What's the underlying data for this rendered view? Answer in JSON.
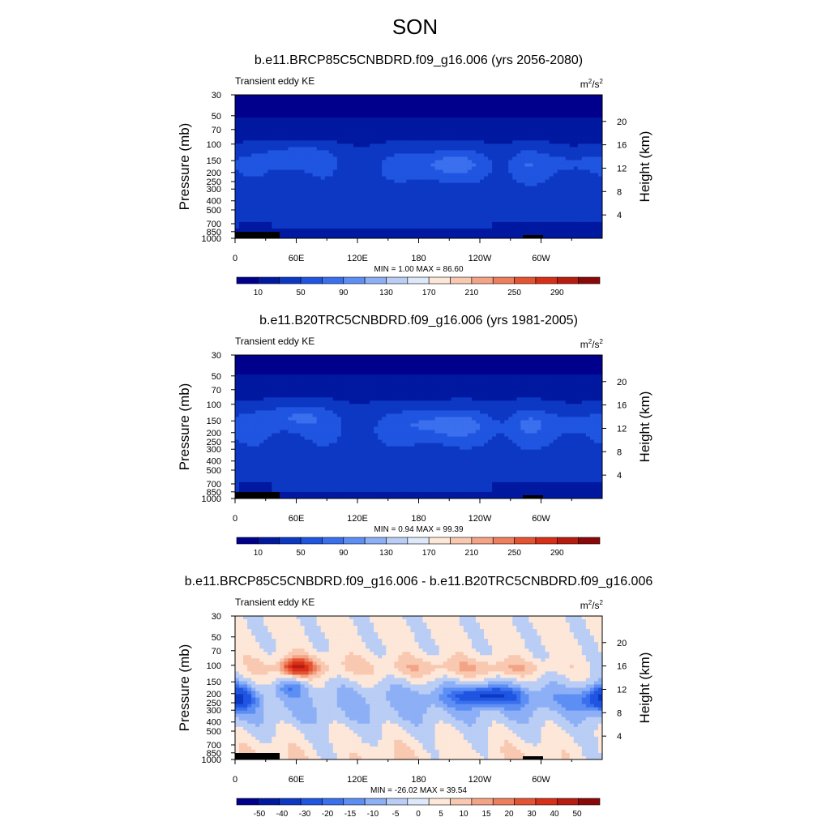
{
  "page_title": "SON",
  "colors": {
    "abs_scale": [
      "#00008c",
      "#0019a0",
      "#0d38c4",
      "#1f55e0",
      "#3a6fee",
      "#5d8ef4",
      "#8caff6",
      "#b9cdf5",
      "#dde8fa",
      "#fde7d9",
      "#f9c8b0",
      "#f4a486",
      "#ee7e5c",
      "#e55432",
      "#d83018",
      "#b81c10",
      "#8a0808"
    ],
    "diff_scale": [
      "#00008c",
      "#0019a0",
      "#0d38c4",
      "#1f55e0",
      "#3a6fee",
      "#5d8ef4",
      "#8caff6",
      "#b9cdf5",
      "#dde8fa",
      "#fde7d9",
      "#f9c8b0",
      "#f4a486",
      "#ee7e5c",
      "#e55432",
      "#d83018",
      "#b81c10",
      "#8a0808"
    ]
  },
  "chart_data": [
    {
      "type": "heatmap",
      "title": "b.e11.BRCP85C5CNBDRD.f09_g16.006 (yrs 2056-2080)",
      "left_label": "Transient eddy KE",
      "units": "m²/s²",
      "units_base": "m",
      "units_sup1": "2",
      "units_mid": "/s",
      "units_sup2": "2",
      "ylabel": "Pressure (mb)",
      "ylabel_right": "Height (km)",
      "x_ticks": [
        "0",
        "60E",
        "120E",
        "180",
        "120W",
        "60W"
      ],
      "x_tick_values": [
        0,
        60,
        120,
        180,
        240,
        300
      ],
      "xlim": [
        0,
        360
      ],
      "y_ticks": [
        "30",
        "50",
        "70",
        "100",
        "150",
        "200",
        "250",
        "300",
        "400",
        "500",
        "700",
        "850",
        "1000"
      ],
      "y_tick_values": [
        30,
        50,
        70,
        100,
        150,
        200,
        250,
        300,
        400,
        500,
        700,
        850,
        1000
      ],
      "ylim": [
        30,
        1000
      ],
      "height_ticks": [
        "4",
        "8",
        "12",
        "16",
        "20"
      ],
      "height_tick_values": [
        4,
        8,
        12,
        16,
        20
      ],
      "stats": "MIN =   1.00  MAX =  86.60",
      "min": 1.0,
      "max": 86.6,
      "colorbar_labels": [
        "10",
        "50",
        "90",
        "130",
        "170",
        "210",
        "250",
        "290"
      ],
      "levels": [
        10,
        30,
        50,
        70,
        90,
        110,
        130,
        150,
        170,
        190,
        210,
        230,
        250,
        270,
        290,
        310
      ],
      "field": "abs",
      "scenario": "future"
    },
    {
      "type": "heatmap",
      "title": "b.e11.B20TRC5CNBDRD.f09_g16.006 (yrs 1981-2005)",
      "left_label": "Transient eddy KE",
      "units": "m²/s²",
      "units_base": "m",
      "units_sup1": "2",
      "units_mid": "/s",
      "units_sup2": "2",
      "ylabel": "Pressure (mb)",
      "ylabel_right": "Height (km)",
      "x_ticks": [
        "0",
        "60E",
        "120E",
        "180",
        "120W",
        "60W"
      ],
      "x_tick_values": [
        0,
        60,
        120,
        180,
        240,
        300
      ],
      "xlim": [
        0,
        360
      ],
      "y_ticks": [
        "30",
        "50",
        "70",
        "100",
        "150",
        "200",
        "250",
        "300",
        "400",
        "500",
        "700",
        "850",
        "1000"
      ],
      "y_tick_values": [
        30,
        50,
        70,
        100,
        150,
        200,
        250,
        300,
        400,
        500,
        700,
        850,
        1000
      ],
      "ylim": [
        30,
        1000
      ],
      "height_ticks": [
        "4",
        "8",
        "12",
        "16",
        "20"
      ],
      "height_tick_values": [
        4,
        8,
        12,
        16,
        20
      ],
      "stats": "MIN =   0.94  MAX =  99.39",
      "min": 0.94,
      "max": 99.39,
      "colorbar_labels": [
        "10",
        "50",
        "90",
        "130",
        "170",
        "210",
        "250",
        "290"
      ],
      "levels": [
        10,
        30,
        50,
        70,
        90,
        110,
        130,
        150,
        170,
        190,
        210,
        230,
        250,
        270,
        290,
        310
      ],
      "field": "abs",
      "scenario": "historical"
    },
    {
      "type": "heatmap",
      "title": "b.e11.BRCP85C5CNBDRD.f09_g16.006 - b.e11.B20TRC5CNBDRD.f09_g16.006",
      "left_label": "Transient eddy KE",
      "units": "m²/s²",
      "units_base": "m",
      "units_sup1": "2",
      "units_mid": "/s",
      "units_sup2": "2",
      "ylabel": "Pressure (mb)",
      "ylabel_right": "Height (km)",
      "x_ticks": [
        "0",
        "60E",
        "120E",
        "180",
        "120W",
        "60W"
      ],
      "x_tick_values": [
        0,
        60,
        120,
        180,
        240,
        300
      ],
      "xlim": [
        0,
        360
      ],
      "y_ticks": [
        "30",
        "50",
        "70",
        "100",
        "150",
        "200",
        "250",
        "300",
        "400",
        "500",
        "700",
        "850",
        "1000"
      ],
      "y_tick_values": [
        30,
        50,
        70,
        100,
        150,
        200,
        250,
        300,
        400,
        500,
        700,
        850,
        1000
      ],
      "ylim": [
        30,
        1000
      ],
      "height_ticks": [
        "4",
        "8",
        "12",
        "16",
        "20"
      ],
      "height_tick_values": [
        4,
        8,
        12,
        16,
        20
      ],
      "stats": "MIN = -26.02  MAX =  39.54",
      "min": -26.02,
      "max": 39.54,
      "colorbar_labels": [
        "-50",
        "-40",
        "-30",
        "-20",
        "-15",
        "-10",
        "-5",
        "0",
        "5",
        "10",
        "15",
        "20",
        "30",
        "40",
        "50"
      ],
      "levels": [
        -50,
        -40,
        -30,
        -20,
        -15,
        -10,
        -5,
        0,
        5,
        10,
        15,
        20,
        30,
        40,
        50
      ],
      "field": "diff",
      "scenario": "difference"
    }
  ]
}
